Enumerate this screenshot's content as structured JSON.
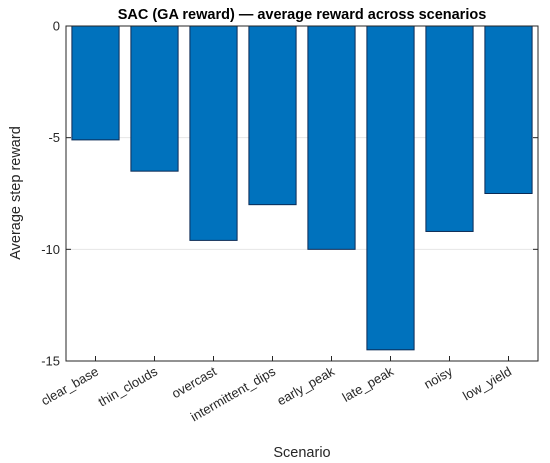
{
  "chart_data": {
    "type": "bar",
    "title": "SAC (GA reward) — average reward across scenarios",
    "xlabel": "Scenario",
    "ylabel": "Average step reward",
    "categories": [
      "clear_base",
      "thin_clouds",
      "overcast",
      "intermittent_dips",
      "early_peak",
      "late_peak",
      "noisy",
      "low_yield"
    ],
    "values": [
      -5.1,
      -6.5,
      -9.6,
      -8.0,
      -10.0,
      -14.5,
      -9.2,
      -7.5
    ],
    "ylim": [
      -15,
      0
    ],
    "yticks": [
      -15,
      -10,
      -5,
      0
    ],
    "grid": true,
    "legend": "none",
    "colors": {
      "bar_fill": "#0072BD",
      "bar_stroke": "#0a2a55",
      "axis": "#262626",
      "grid": "#e6e6e6"
    }
  }
}
